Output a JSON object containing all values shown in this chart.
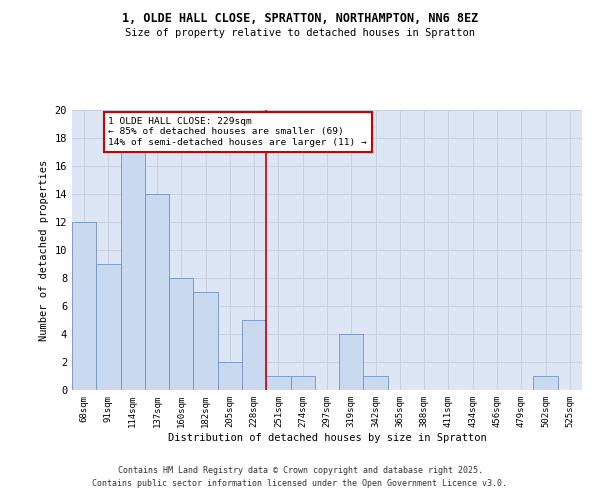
{
  "title_line1": "1, OLDE HALL CLOSE, SPRATTON, NORTHAMPTON, NN6 8EZ",
  "title_line2": "Size of property relative to detached houses in Spratton",
  "xlabel": "Distribution of detached houses by size in Spratton",
  "ylabel": "Number of detached properties",
  "categories": [
    "68sqm",
    "91sqm",
    "114sqm",
    "137sqm",
    "160sqm",
    "182sqm",
    "205sqm",
    "228sqm",
    "251sqm",
    "274sqm",
    "297sqm",
    "319sqm",
    "342sqm",
    "365sqm",
    "388sqm",
    "411sqm",
    "434sqm",
    "456sqm",
    "479sqm",
    "502sqm",
    "525sqm"
  ],
  "values": [
    12,
    9,
    17,
    14,
    8,
    7,
    2,
    5,
    1,
    1,
    0,
    4,
    1,
    0,
    0,
    0,
    0,
    0,
    0,
    1,
    0
  ],
  "bar_color": "#c9d9f0",
  "bar_edge_color": "#7094c0",
  "red_line_index": 7.5,
  "annotation_title": "1 OLDE HALL CLOSE: 229sqm",
  "annotation_line2": "← 85% of detached houses are smaller (69)",
  "annotation_line3": "14% of semi-detached houses are larger (11) →",
  "annotation_box_color": "#ffffff",
  "annotation_edge_color": "#cc0000",
  "red_line_color": "#cc0000",
  "grid_color": "#c8d0e0",
  "background_color": "#dde6f5",
  "ylim": [
    0,
    20
  ],
  "yticks": [
    0,
    2,
    4,
    6,
    8,
    10,
    12,
    14,
    16,
    18,
    20
  ],
  "footer_line1": "Contains HM Land Registry data © Crown copyright and database right 2025.",
  "footer_line2": "Contains public sector information licensed under the Open Government Licence v3.0."
}
